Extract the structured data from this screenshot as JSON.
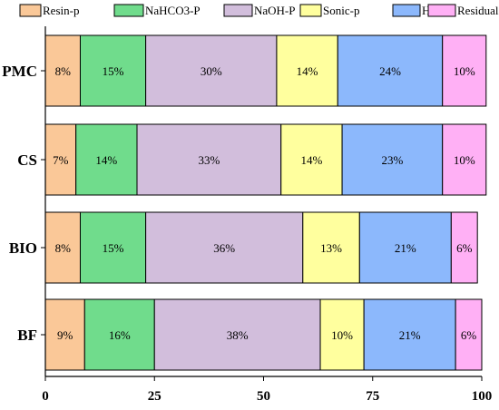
{
  "chart_data": {
    "type": "bar",
    "orientation": "horizontal",
    "stacked": true,
    "title": "",
    "xlabel": "",
    "ylabel": "",
    "xlim": [
      0,
      100
    ],
    "x_ticks": [
      0,
      25,
      50,
      75,
      100
    ],
    "grid": false,
    "legend_position": "top",
    "categories": [
      "PMC",
      "CS",
      "BIO",
      "BF"
    ],
    "series": [
      {
        "name": "Resin-p",
        "color": "#fac898",
        "values": [
          8,
          7,
          8,
          9
        ],
        "labels": [
          "8%",
          "7%",
          "8%",
          "9%"
        ]
      },
      {
        "name": "NaHCO3-P",
        "color": "#70dc8c",
        "values": [
          15,
          14,
          15,
          16
        ],
        "labels": [
          "15%",
          "14%",
          "15%",
          "16%"
        ]
      },
      {
        "name": "NaOH-P",
        "color": "#d2bedc",
        "values": [
          30,
          33,
          36,
          38
        ],
        "labels": [
          "30%",
          "33%",
          "36%",
          "38%"
        ]
      },
      {
        "name": "Sonic-p",
        "color": "#ffff9e",
        "values": [
          14,
          14,
          13,
          10
        ],
        "labels": [
          "14%",
          "14%",
          "13%",
          "10%"
        ]
      },
      {
        "name": "HCl-P",
        "color": "#8cb8fc",
        "values": [
          24,
          23,
          21,
          21
        ],
        "labels": [
          "24%",
          "23%",
          "21%",
          "21%"
        ]
      },
      {
        "name": "Residual-p",
        "color": "#ffb0f5",
        "values": [
          10,
          10,
          6,
          6
        ],
        "labels": [
          "10%",
          "10%",
          "6%",
          "6%"
        ]
      }
    ]
  }
}
